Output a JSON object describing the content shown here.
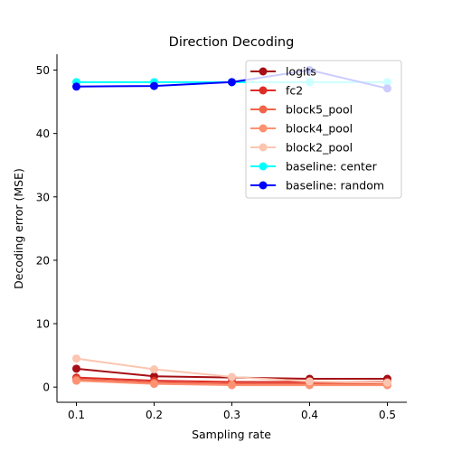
{
  "chart_data": {
    "type": "line",
    "title": "Direction Decoding",
    "xlabel": "Sampling rate",
    "ylabel": "Decoding error (MSE)",
    "x": [
      0.1,
      0.2,
      0.3,
      0.4,
      0.5
    ],
    "x_ticks": [
      "0.1",
      "0.2",
      "0.3",
      "0.4",
      "0.5"
    ],
    "y_ticks": [
      "0",
      "10",
      "20",
      "30",
      "40",
      "50"
    ],
    "xlim": [
      0.075,
      0.525
    ],
    "ylim": [
      -2.4,
      52.5
    ],
    "grid": false,
    "legend_position": "top-right",
    "series": [
      {
        "name": "logits",
        "color": "#a50f15",
        "values": [
          2.9,
          1.7,
          1.5,
          1.3,
          1.3
        ]
      },
      {
        "name": "fc2",
        "color": "#de2d26",
        "values": [
          1.5,
          1.0,
          0.8,
          0.8,
          0.8
        ]
      },
      {
        "name": "block5_pool",
        "color": "#ef6548",
        "values": [
          1.2,
          0.7,
          0.5,
          0.5,
          0.5
        ]
      },
      {
        "name": "block4_pool",
        "color": "#fc9272",
        "values": [
          1.0,
          0.5,
          0.3,
          0.3,
          0.3
        ]
      },
      {
        "name": "block2_pool",
        "color": "#fcc5b0",
        "values": [
          4.5,
          2.8,
          1.6,
          0.9,
          0.7
        ]
      },
      {
        "name": "baseline: center",
        "color": "#00ffff",
        "values": [
          48.1,
          48.1,
          48.1,
          48.1,
          48.1
        ]
      },
      {
        "name": "baseline: random",
        "color": "#0000ff",
        "values": [
          47.4,
          47.5,
          48.1,
          50.0,
          47.1
        ]
      }
    ]
  }
}
